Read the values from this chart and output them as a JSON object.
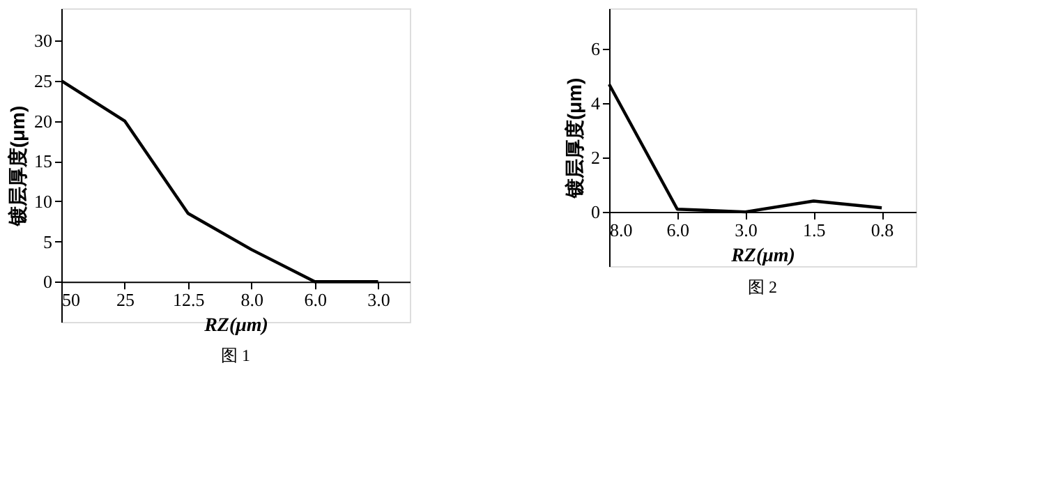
{
  "chart_data": [
    {
      "type": "line",
      "title": "图 1",
      "xlabel": "RZ(μm)",
      "ylabel": "镀层厚度(μm)",
      "categories": [
        "50",
        "25",
        "12.5",
        "8.0",
        "6.0",
        "3.0"
      ],
      "series": [
        {
          "color": "#000000",
          "values": [
            25,
            20,
            8.5,
            4,
            0,
            0
          ]
        }
      ],
      "ylim": [
        -5,
        34
      ],
      "yticks": [
        0,
        5,
        10,
        15,
        20,
        25,
        30
      ],
      "grid": false,
      "marker": "none",
      "line_style": "solid"
    },
    {
      "type": "line",
      "title": "图 2",
      "xlabel": "RZ(μm)",
      "ylabel": "镀层厚度(μm)",
      "categories": [
        "8.0",
        "6.0",
        "3.0",
        "1.5",
        "0.8"
      ],
      "series": [
        {
          "color": "#000000",
          "values": [
            4.7,
            0.1,
            0,
            0.4,
            0.15
          ]
        }
      ],
      "ylim": [
        -2,
        7.5
      ],
      "yticks": [
        0,
        2,
        4,
        6
      ],
      "grid": false,
      "marker": "none",
      "line_style": "solid"
    }
  ]
}
